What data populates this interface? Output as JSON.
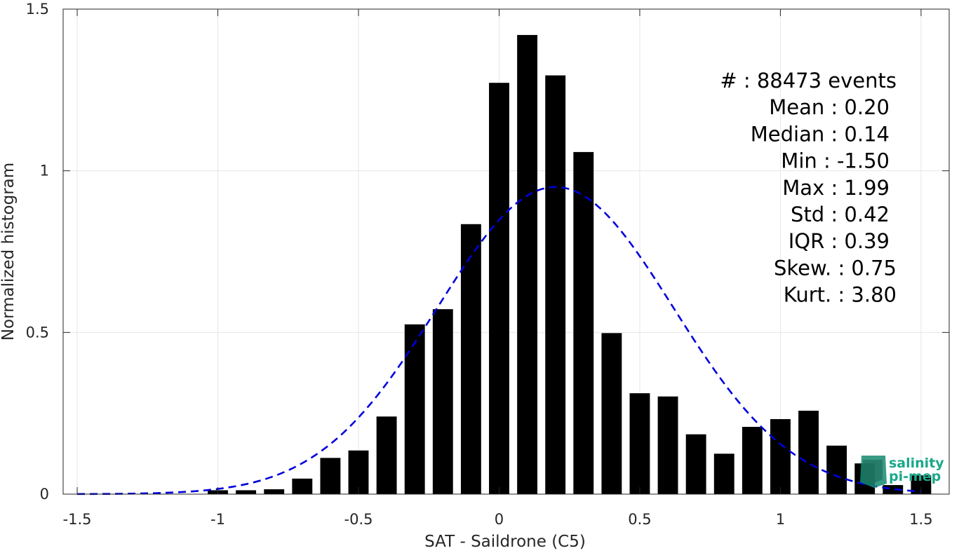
{
  "chart_data": {
    "type": "bar",
    "xlabel": "SAT - Saildrone (C5)",
    "ylabel": "Normalized histogram",
    "xlim": [
      -1.55,
      1.6
    ],
    "ylim": [
      0,
      1.5
    ],
    "xticks": [
      -1.5,
      -1,
      -0.5,
      0,
      0.5,
      1,
      1.5
    ],
    "xtick_labels": [
      "-1.5",
      "-1",
      "-0.5",
      "0",
      "0.5",
      "1",
      "1.5"
    ],
    "yticks": [
      0,
      0.5,
      1,
      1.5
    ],
    "ytick_labels": [
      "0",
      "0.5",
      "1",
      "1.5"
    ],
    "grid": true,
    "bin_width": 0.1,
    "bar_color": "#000000",
    "bins": [
      {
        "x": -1.5,
        "y": 0.0
      },
      {
        "x": -1.4,
        "y": 0.0
      },
      {
        "x": -1.3,
        "y": 0.0
      },
      {
        "x": -1.2,
        "y": 0.0
      },
      {
        "x": -1.1,
        "y": 0.0
      },
      {
        "x": -1.0,
        "y": 0.012
      },
      {
        "x": -0.9,
        "y": 0.012
      },
      {
        "x": -0.8,
        "y": 0.015
      },
      {
        "x": -0.7,
        "y": 0.048
      },
      {
        "x": -0.6,
        "y": 0.112
      },
      {
        "x": -0.5,
        "y": 0.135
      },
      {
        "x": -0.4,
        "y": 0.24
      },
      {
        "x": -0.3,
        "y": 0.525
      },
      {
        "x": -0.2,
        "y": 0.572
      },
      {
        "x": -0.1,
        "y": 0.835
      },
      {
        "x": 0.0,
        "y": 1.272
      },
      {
        "x": 0.1,
        "y": 1.42
      },
      {
        "x": 0.2,
        "y": 1.295
      },
      {
        "x": 0.3,
        "y": 1.058
      },
      {
        "x": 0.4,
        "y": 0.498
      },
      {
        "x": 0.5,
        "y": 0.312
      },
      {
        "x": 0.6,
        "y": 0.302
      },
      {
        "x": 0.7,
        "y": 0.185
      },
      {
        "x": 0.8,
        "y": 0.125
      },
      {
        "x": 0.9,
        "y": 0.208
      },
      {
        "x": 1.0,
        "y": 0.232
      },
      {
        "x": 1.1,
        "y": 0.258
      },
      {
        "x": 1.2,
        "y": 0.15
      },
      {
        "x": 1.3,
        "y": 0.095
      },
      {
        "x": 1.4,
        "y": 0.028
      },
      {
        "x": 1.5,
        "y": 0.058
      }
    ],
    "fit_curve": {
      "style": "dashed",
      "color": "#0000dd",
      "mean": 0.2,
      "std": 0.42,
      "x_range": [
        -1.5,
        1.5
      ]
    },
    "stats": [
      "#  : 88473 events",
      "Mean : 0.20",
      "Median : 0.14",
      "Min : -1.50",
      "Max : 1.99",
      "Std : 0.42",
      "IQR : 0.39",
      "Skew. : 0.75",
      "Kurt. : 3.80"
    ]
  },
  "logo": {
    "line1": "salinity",
    "line2": "pi-mep",
    "color": "#1aa88a"
  }
}
